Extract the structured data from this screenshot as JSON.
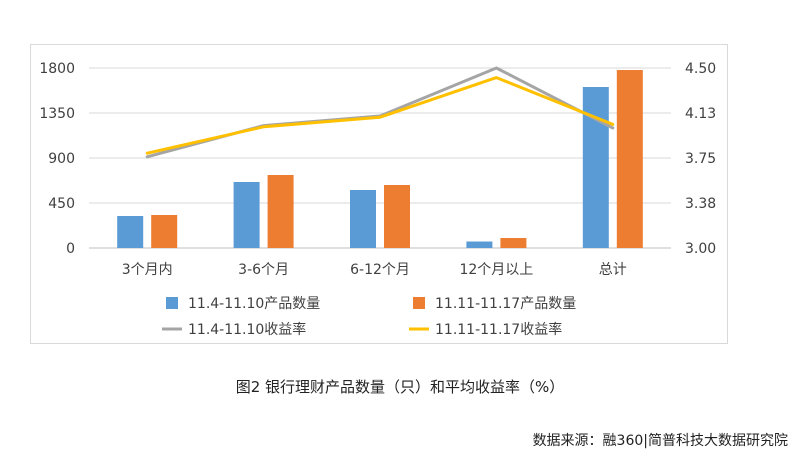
{
  "caption": "图2 银行理财产品数量（只）和平均收益率（%）",
  "source": "数据来源：融360|简普科技大数据研究院",
  "colors": {
    "bar_a": "#5b9bd5",
    "bar_b": "#ed7d31",
    "line_a": "#a5a5a5",
    "line_b": "#ffc000"
  },
  "chart_data": {
    "type": "bar",
    "categories": [
      "3个月内",
      "3-6个月",
      "6-12个月",
      "12个月以上",
      "总计"
    ],
    "y_left": {
      "min": 0,
      "max": 1800,
      "ticks": [
        "0",
        "450",
        "900",
        "1350",
        "1800"
      ]
    },
    "y_right": {
      "min": 3.0,
      "max": 4.5,
      "ticks": [
        "3.00",
        "3.38",
        "3.75",
        "4.13",
        "4.50"
      ]
    },
    "series": [
      {
        "name": "11.4-11.10产品数量",
        "kind": "bar",
        "axis": "left",
        "values": [
          320,
          660,
          580,
          65,
          1610
        ]
      },
      {
        "name": "11.11-11.17产品数量",
        "kind": "bar",
        "axis": "left",
        "values": [
          330,
          730,
          630,
          100,
          1780
        ]
      },
      {
        "name": "11.4-11.10收益率",
        "kind": "line",
        "axis": "right",
        "values": [
          3.76,
          4.02,
          4.1,
          4.5,
          4.0
        ]
      },
      {
        "name": "11.11-11.17收益率",
        "kind": "line",
        "axis": "right",
        "values": [
          3.79,
          4.01,
          4.09,
          4.42,
          4.03
        ]
      }
    ],
    "legend_position": "bottom",
    "grid": true
  }
}
